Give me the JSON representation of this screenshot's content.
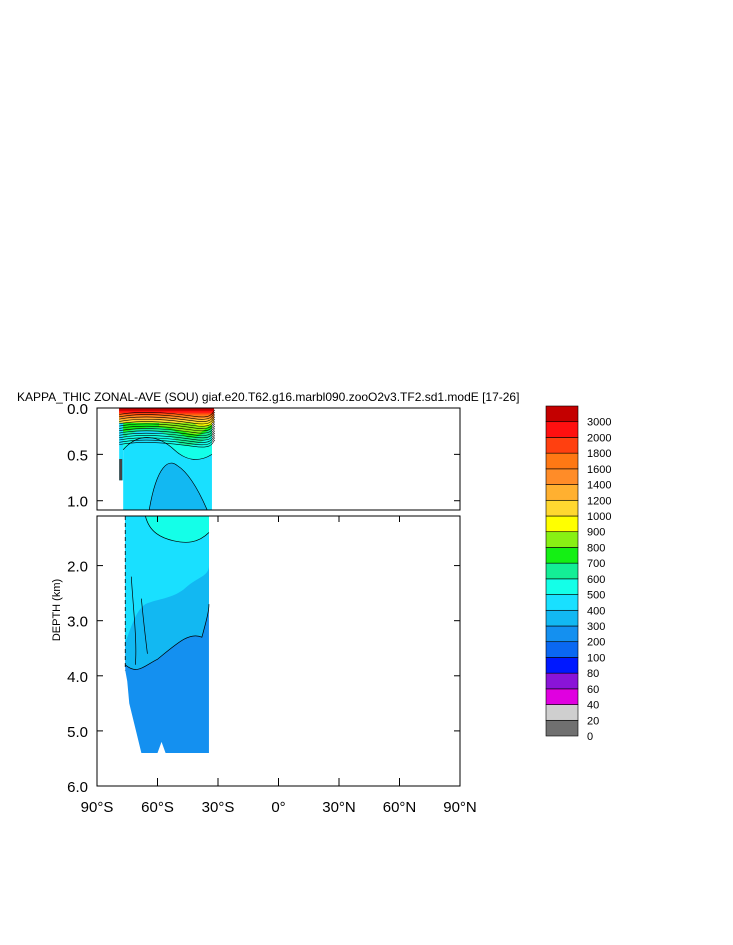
{
  "chart_data": {
    "type": "contour",
    "title": "KAPPA_THIC ZONAL-AVE (SOU) giaf.e20.T62.g16.marbl090.zooO2v3.TF2.sd1.modE [17-26]",
    "ylabel": "DEPTH (km)",
    "xlim_deg": [
      -90,
      90
    ],
    "x_ticks": [
      {
        "value": -90,
        "label": "90°S"
      },
      {
        "value": -60,
        "label": "60°S"
      },
      {
        "value": -30,
        "label": "30°S"
      },
      {
        "value": 0,
        "label": "0°"
      },
      {
        "value": 30,
        "label": "30°N"
      },
      {
        "value": 60,
        "label": "60°N"
      },
      {
        "value": 90,
        "label": "90°N"
      }
    ],
    "upper_panel": {
      "ylim_km": [
        0.0,
        1.1
      ],
      "y_ticks": [
        {
          "value": 0.0,
          "label": "0.0"
        },
        {
          "value": 0.5,
          "label": "0.5"
        },
        {
          "value": 1.0,
          "label": "1.0"
        }
      ]
    },
    "lower_panel": {
      "ylim_km": [
        1.1,
        6.0
      ],
      "y_ticks": [
        {
          "value": 2.0,
          "label": "2.0"
        },
        {
          "value": 3.0,
          "label": "3.0"
        },
        {
          "value": 4.0,
          "label": "4.0"
        },
        {
          "value": 5.0,
          "label": "5.0"
        },
        {
          "value": 6.0,
          "label": "6.0"
        }
      ]
    },
    "data_extent_lat": [
      -79,
      -33
    ],
    "colorbar": {
      "levels": [
        "0",
        "20",
        "40",
        "60",
        "80",
        "100",
        "200",
        "300",
        "400",
        "500",
        "600",
        "700",
        "800",
        "900",
        "1000",
        "1200",
        "1400",
        "1600",
        "1800",
        "2000",
        "3000"
      ],
      "colors": [
        "#707070",
        "#cfcfcf",
        "#e000e0",
        "#8a14d8",
        "#0018ff",
        "#0a68f2",
        "#1490f0",
        "#12b8f2",
        "#19e0ff",
        "#14ffe8",
        "#14ee96",
        "#14f014",
        "#88f014",
        "#ffff00",
        "#ffd830",
        "#ffb030",
        "#ff8c28",
        "#ff7814",
        "#ff4010",
        "#ff1010",
        "#c40000"
      ]
    }
  }
}
